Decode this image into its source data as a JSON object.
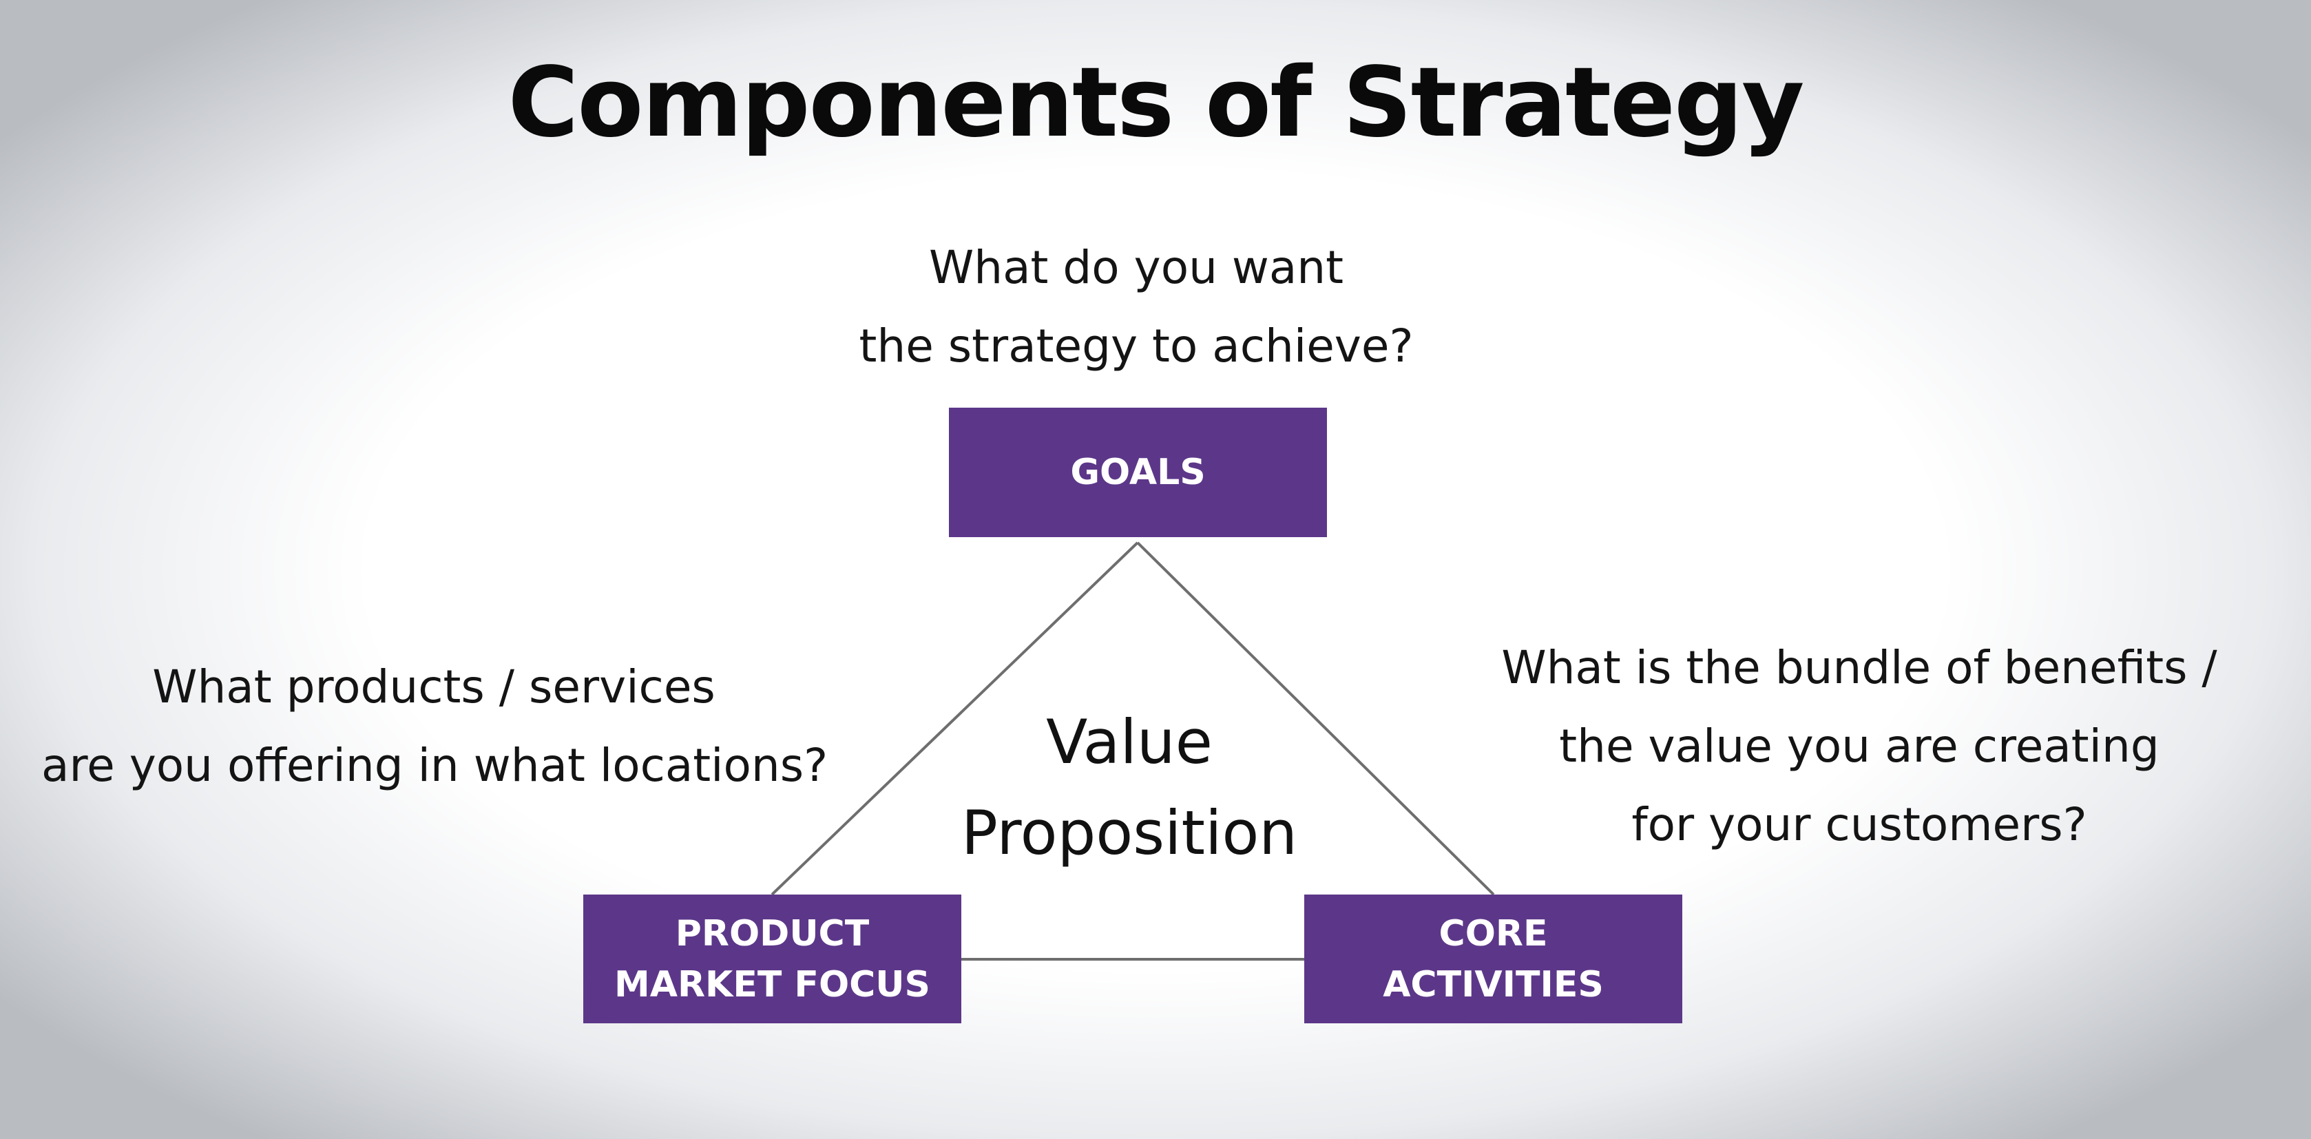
{
  "slide": {
    "title": "Components of Strategy"
  },
  "questions": {
    "goals": {
      "line1": "What do you want",
      "line2": "the strategy to achieve?"
    },
    "product_market_focus": {
      "line1": "What products / services",
      "line2": "are you offering in what locations?"
    },
    "core_activities": {
      "line1": "What is the bundle of benefits /",
      "line2": "the value you are creating",
      "line3": "for your customers?"
    }
  },
  "nodes": {
    "goals": {
      "line1": "GOALS"
    },
    "product_market_focus": {
      "line1": "PRODUCT",
      "line2": "MARKET FOCUS"
    },
    "core_activities": {
      "line1": "CORE",
      "line2": "ACTIVITIES"
    }
  },
  "center": {
    "line1": "Value",
    "line2": "Proposition"
  },
  "colors": {
    "box_fill": "#5c3789",
    "box_text": "#ffffff",
    "connector": "#6e6e6e",
    "text": "#111111"
  }
}
